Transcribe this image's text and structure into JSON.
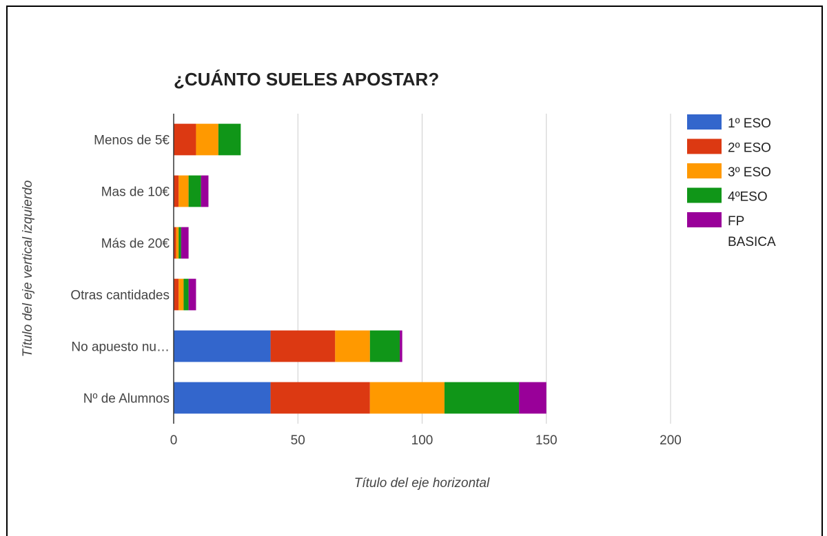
{
  "chart_data": {
    "type": "bar",
    "orientation": "horizontal",
    "stacked": true,
    "title": "¿CUÁNTO SUELES APOSTAR?",
    "xlabel": "Título del eje horizontal",
    "ylabel": "Título del eje vertical izquierdo",
    "xlim": [
      0,
      200
    ],
    "xticks": [
      0,
      50,
      100,
      150,
      200
    ],
    "grid": true,
    "legend_position": "right",
    "categories": [
      "Menos de 5€",
      "Mas de 10€",
      "Más de 20€",
      "Otras cantidades",
      "No apuesto nu…",
      "Nº de Alumnos"
    ],
    "series": [
      {
        "name": "1º ESO",
        "color": "#3366cc",
        "values": [
          0,
          0,
          0,
          0,
          39,
          39
        ]
      },
      {
        "name": "2º ESO",
        "color": "#dc3912",
        "values": [
          9,
          2,
          1,
          2,
          26,
          40
        ]
      },
      {
        "name": "3º ESO",
        "color": "#ff9900",
        "values": [
          9,
          4,
          1,
          2,
          14,
          30
        ]
      },
      {
        "name": "4ºESO",
        "color": "#109618",
        "values": [
          9,
          5,
          1,
          2,
          12,
          30
        ]
      },
      {
        "name": "FP BASICA",
        "color": "#990099",
        "values": [
          0,
          3,
          3,
          3,
          1,
          11
        ]
      }
    ]
  }
}
